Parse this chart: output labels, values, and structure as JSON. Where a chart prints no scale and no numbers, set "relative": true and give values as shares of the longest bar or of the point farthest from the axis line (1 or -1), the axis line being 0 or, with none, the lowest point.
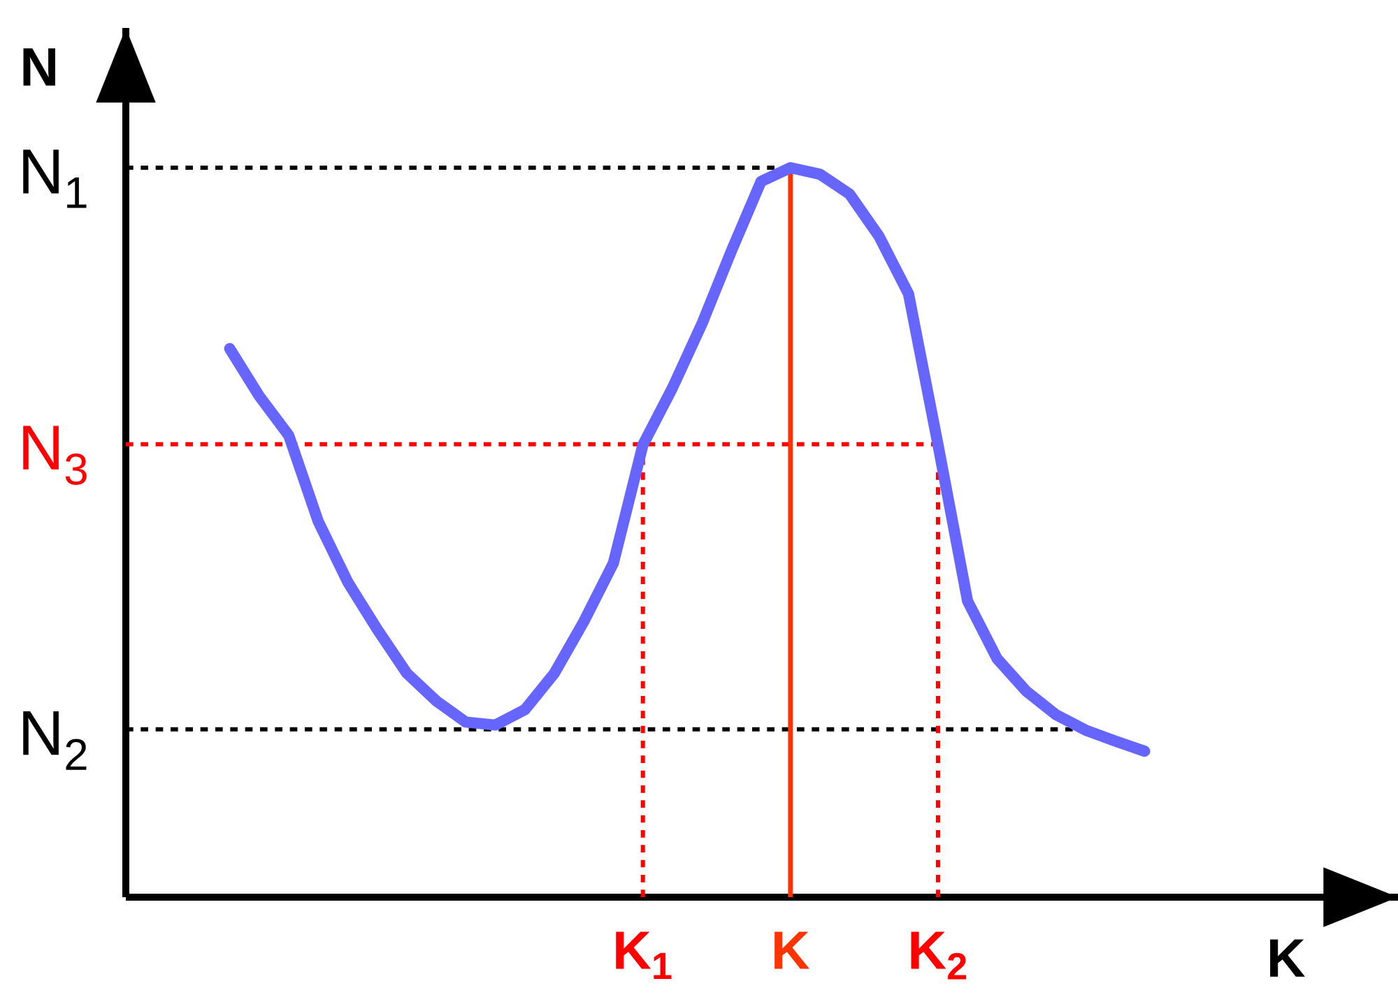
{
  "chart_data": {
    "type": "line",
    "relative": true,
    "xlabel": "K",
    "ylabel": "N",
    "categories": [
      null,
      null,
      null,
      null,
      null,
      null,
      null,
      null,
      null,
      null,
      null,
      null,
      null,
      null,
      "K$_{1}$",
      null,
      null,
      null,
      null,
      "K",
      null,
      null,
      null,
      null,
      "K$_{2}$",
      null,
      null,
      null,
      null,
      null,
      null,
      null
    ],
    "series": [
      {
        "color": "#6666ff",
        "values": [
          0.752,
          0.687,
          0.633,
          0.515,
          0.432,
          0.367,
          0.307,
          0.269,
          0.24,
          0.236,
          0.257,
          0.307,
          0.378,
          0.458,
          0.62,
          0.698,
          0.786,
          0.886,
          0.981,
          1,
          0.991,
          0.964,
          0.906,
          0.827,
          0.62,
          0.406,
          0.327,
          0.282,
          0.25,
          0.229,
          0.214,
          0.2
        ]
      }
    ],
    "ref_lines": [
      {
        "axis": "y",
        "value": 1,
        "label": "N$_{1}$",
        "color": "#000000",
        "line_style": "dashed"
      },
      {
        "axis": "y",
        "value": 0.23,
        "label": "N$_{2}$",
        "color": "#000000",
        "line_style": "dashed"
      },
      {
        "axis": "y",
        "value": 0.621,
        "label": "N$_{3}$",
        "color": "#ff0000",
        "line_style": "dashed"
      },
      {
        "axis": "x",
        "value": "K$_{1}$",
        "color": "#ff0000",
        "line_style": "dashed"
      },
      {
        "axis": "x",
        "value": "K",
        "color": "#ff3300",
        "line_style": "solid"
      },
      {
        "axis": "x",
        "value": "K$_{2}$",
        "color": "#ff0000",
        "line_style": "dashed"
      }
    ]
  }
}
